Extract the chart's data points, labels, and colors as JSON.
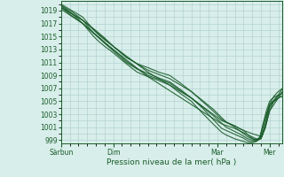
{
  "title": "",
  "xlabel": "Pression niveau de la mer( hPa )",
  "background_color": "#d8eeea",
  "grid_color": "#aacccc",
  "line_color": "#1a5c2a",
  "ylim": [
    998.5,
    1020.5
  ],
  "yticks": [
    999,
    1001,
    1003,
    1005,
    1007,
    1009,
    1011,
    1013,
    1015,
    1017,
    1019
  ],
  "xtick_labels": [
    "Sàrbun",
    "Dim",
    "Mar",
    "Mer"
  ],
  "xtick_positions": [
    0,
    48,
    144,
    192
  ],
  "xlim": [
    0,
    204
  ],
  "lines": [
    {
      "x": [
        0,
        5,
        10,
        15,
        20,
        25,
        30,
        35,
        40,
        44,
        48,
        55,
        60,
        70,
        80,
        90,
        100,
        110,
        120,
        130,
        140,
        148,
        152,
        156,
        160,
        164,
        168,
        170,
        172,
        174,
        176,
        178,
        180,
        183,
        186,
        189,
        192,
        195,
        198,
        201,
        204
      ],
      "y": [
        1020.0,
        1019.5,
        1019.0,
        1018.5,
        1018.0,
        1017.0,
        1016.0,
        1015.2,
        1014.5,
        1014.0,
        1013.5,
        1012.5,
        1011.8,
        1010.8,
        1010.2,
        1009.5,
        1009.0,
        1007.8,
        1006.5,
        1005.0,
        1003.5,
        1002.2,
        1001.8,
        1001.5,
        1001.2,
        1000.8,
        1000.5,
        1000.2,
        999.8,
        999.5,
        999.3,
        999.1,
        999.0,
        999.5,
        1001.5,
        1003.5,
        1005.0,
        1005.5,
        1005.8,
        1006.0,
        1006.2
      ]
    },
    {
      "x": [
        0,
        5,
        10,
        15,
        20,
        25,
        30,
        35,
        40,
        44,
        48,
        55,
        60,
        70,
        80,
        90,
        100,
        110,
        120,
        130,
        140,
        148,
        152,
        156,
        160,
        164,
        168,
        170,
        172,
        174,
        176,
        178,
        180,
        183,
        186,
        189,
        192,
        195,
        198,
        201,
        204
      ],
      "y": [
        1019.8,
        1019.3,
        1018.8,
        1018.2,
        1017.5,
        1016.5,
        1015.5,
        1014.8,
        1014.0,
        1013.5,
        1013.0,
        1012.0,
        1011.2,
        1010.0,
        1009.3,
        1008.6,
        1008.0,
        1006.8,
        1005.5,
        1004.0,
        1002.2,
        1000.8,
        1000.5,
        1000.2,
        999.9,
        999.6,
        999.3,
        999.1,
        998.9,
        998.8,
        998.8,
        998.8,
        998.9,
        999.2,
        1001.0,
        1002.8,
        1004.2,
        1004.8,
        1005.2,
        1005.6,
        1005.8
      ]
    },
    {
      "x": [
        0,
        5,
        10,
        15,
        20,
        25,
        30,
        35,
        40,
        44,
        48,
        55,
        60,
        70,
        80,
        90,
        100,
        110,
        120,
        130,
        140,
        148,
        152,
        156,
        160,
        164,
        168,
        170,
        172,
        174,
        176,
        178,
        180,
        183,
        186,
        189,
        192,
        195,
        198,
        201,
        204
      ],
      "y": [
        1019.5,
        1019.0,
        1018.5,
        1017.8,
        1017.0,
        1016.0,
        1015.0,
        1014.2,
        1013.5,
        1013.0,
        1012.5,
        1011.5,
        1010.8,
        1009.5,
        1008.8,
        1008.2,
        1007.5,
        1006.2,
        1005.0,
        1003.2,
        1001.5,
        1000.2,
        999.8,
        999.5,
        999.2,
        999.0,
        998.8,
        998.7,
        998.6,
        998.6,
        998.6,
        998.7,
        998.8,
        999.2,
        1001.2,
        1003.0,
        1004.5,
        1005.0,
        1005.3,
        1005.6,
        1005.8
      ]
    },
    {
      "x": [
        0,
        10,
        20,
        30,
        40,
        48,
        60,
        80,
        100,
        120,
        140,
        152,
        158,
        164,
        168,
        172,
        176,
        180,
        184,
        188,
        192,
        196,
        200,
        204
      ],
      "y": [
        1019.5,
        1018.2,
        1017.0,
        1015.5,
        1014.0,
        1012.8,
        1011.0,
        1009.0,
        1007.8,
        1005.5,
        1002.8,
        1001.0,
        1000.5,
        1000.0,
        999.6,
        999.2,
        999.0,
        999.0,
        999.2,
        1001.0,
        1003.5,
        1004.5,
        1005.5,
        1006.5
      ]
    },
    {
      "x": [
        0,
        10,
        20,
        30,
        40,
        48,
        60,
        80,
        100,
        120,
        140,
        152,
        158,
        164,
        168,
        172,
        176,
        180,
        184,
        188,
        192,
        196,
        200,
        204
      ],
      "y": [
        1019.8,
        1018.5,
        1017.5,
        1016.2,
        1014.8,
        1013.5,
        1011.8,
        1009.8,
        1008.5,
        1006.5,
        1003.8,
        1001.8,
        1001.2,
        1000.5,
        1000.0,
        999.5,
        999.2,
        999.1,
        999.3,
        1001.5,
        1004.0,
        1005.2,
        1006.0,
        1007.0
      ]
    },
    {
      "x": [
        0,
        20,
        48,
        80,
        120,
        148,
        160,
        170,
        176,
        180,
        184,
        188,
        192,
        196,
        200,
        204
      ],
      "y": [
        1019.2,
        1017.0,
        1013.0,
        1008.8,
        1004.5,
        1001.5,
        1000.8,
        1000.0,
        999.5,
        999.2,
        999.2,
        1000.8,
        1003.5,
        1005.0,
        1005.8,
        1006.5
      ]
    },
    {
      "x": [
        0,
        20,
        48,
        80,
        120,
        148,
        160,
        168,
        176,
        180,
        185,
        188,
        192,
        196,
        200,
        204
      ],
      "y": [
        1019.5,
        1017.5,
        1013.5,
        1009.5,
        1005.5,
        1002.0,
        1001.2,
        1000.5,
        1000.0,
        999.8,
        999.5,
        1001.2,
        1004.5,
        1005.8,
        1006.5,
        1007.0
      ]
    }
  ]
}
